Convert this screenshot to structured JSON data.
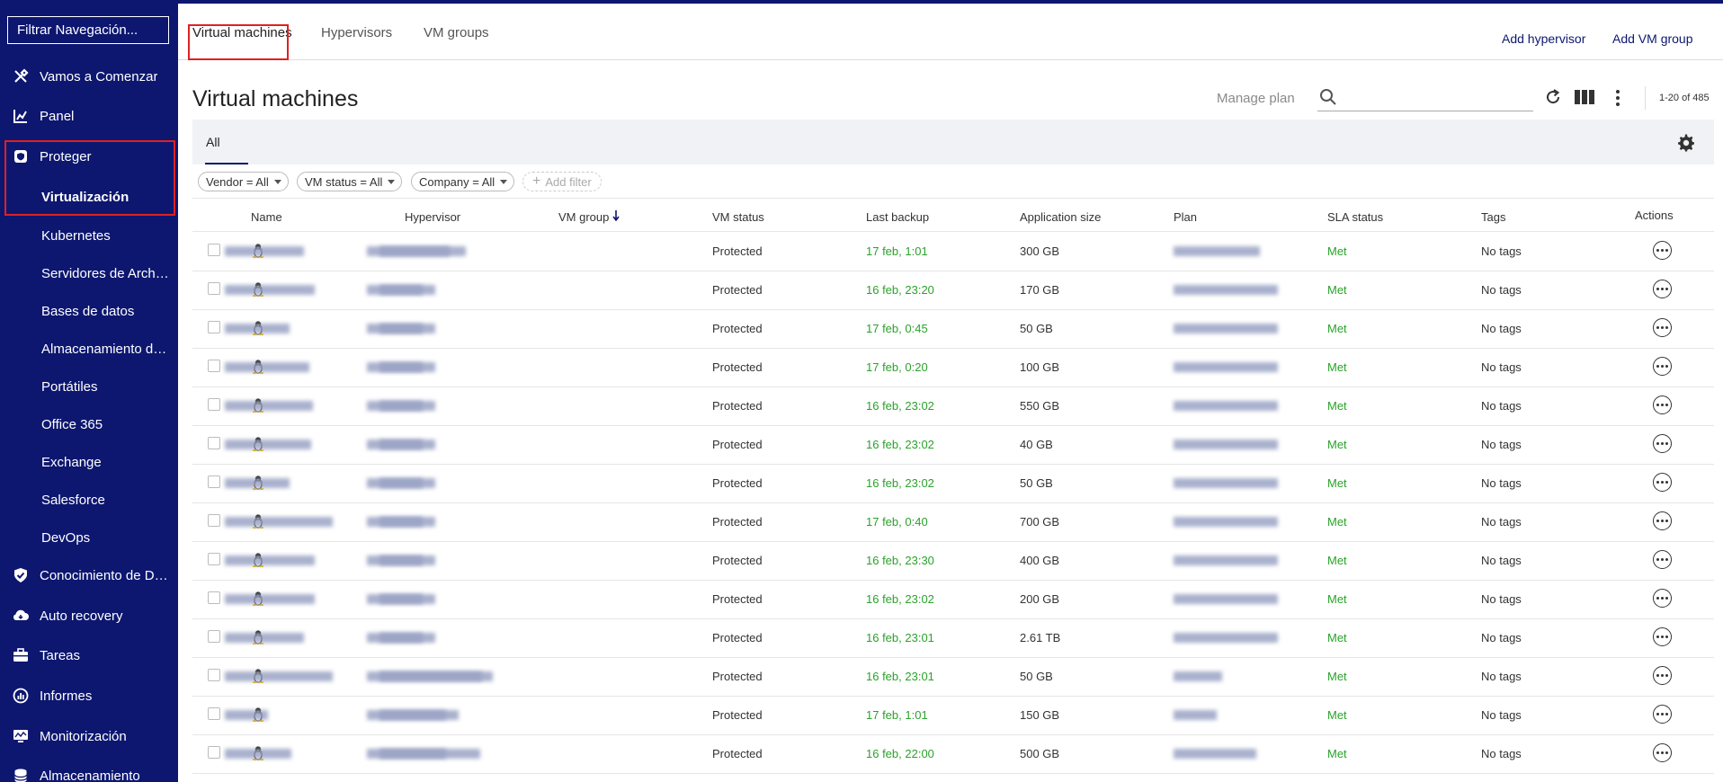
{
  "sidebar": {
    "filter_placeholder": "Filtrar Navegación...",
    "items": [
      {
        "label": "Vamos a Comenzar",
        "icon": "tools-icon"
      },
      {
        "label": "Panel",
        "icon": "chart-icon"
      },
      {
        "label": "Proteger",
        "icon": "shield-badge-icon"
      },
      {
        "label": "Virtualización"
      },
      {
        "label": "Kubernetes"
      },
      {
        "label": "Servidores de Archivos"
      },
      {
        "label": "Bases de datos"
      },
      {
        "label": "Almacenamiento de objetos"
      },
      {
        "label": "Portátiles"
      },
      {
        "label": "Office 365"
      },
      {
        "label": "Exchange"
      },
      {
        "label": "Salesforce"
      },
      {
        "label": "DevOps"
      },
      {
        "label": "Conocimiento de Datos",
        "icon": "shield-check-icon"
      },
      {
        "label": "Auto recovery",
        "icon": "cloud-recovery-icon"
      },
      {
        "label": "Tareas",
        "icon": "briefcase-icon"
      },
      {
        "label": "Informes",
        "icon": "report-icon"
      },
      {
        "label": "Monitorización",
        "icon": "monitor-icon"
      },
      {
        "label": "Almacenamiento",
        "icon": "database-icon"
      }
    ]
  },
  "tabs": [
    "Virtual machines",
    "Hypervisors",
    "VM groups"
  ],
  "top_actions": {
    "add_hypervisor": "Add hypervisor",
    "add_vm_group": "Add VM group"
  },
  "page": {
    "title": "Virtual machines",
    "manage_plan": "Manage plan",
    "search_placeholder": "",
    "count": "1-20 of 485"
  },
  "subtab": "All",
  "filters": [
    "Vendor = All",
    "VM status = All",
    "Company = All"
  ],
  "add_filter": "Add filter",
  "columns": [
    "Name",
    "Hypervisor",
    "VM group",
    "VM status",
    "Last backup",
    "Application size",
    "Plan",
    "SLA status",
    "Tags",
    "Actions"
  ],
  "rows": [
    {
      "status": "Protected",
      "backup": "17 feb, 1:01",
      "size": "300 GB",
      "sla": "Met",
      "tags": "No tags"
    },
    {
      "status": "Protected",
      "backup": "16 feb, 23:20",
      "size": "170 GB",
      "sla": "Met",
      "tags": "No tags"
    },
    {
      "status": "Protected",
      "backup": "17 feb, 0:45",
      "size": "50 GB",
      "sla": "Met",
      "tags": "No tags"
    },
    {
      "status": "Protected",
      "backup": "17 feb, 0:20",
      "size": "100 GB",
      "sla": "Met",
      "tags": "No tags"
    },
    {
      "status": "Protected",
      "backup": "16 feb, 23:02",
      "size": "550 GB",
      "sla": "Met",
      "tags": "No tags"
    },
    {
      "status": "Protected",
      "backup": "16 feb, 23:02",
      "size": "40 GB",
      "sla": "Met",
      "tags": "No tags"
    },
    {
      "status": "Protected",
      "backup": "16 feb, 23:02",
      "size": "50 GB",
      "sla": "Met",
      "tags": "No tags"
    },
    {
      "status": "Protected",
      "backup": "17 feb, 0:40",
      "size": "700 GB",
      "sla": "Met",
      "tags": "No tags"
    },
    {
      "status": "Protected",
      "backup": "16 feb, 23:30",
      "size": "400 GB",
      "sla": "Met",
      "tags": "No tags"
    },
    {
      "status": "Protected",
      "backup": "16 feb, 23:02",
      "size": "200 GB",
      "sla": "Met",
      "tags": "No tags"
    },
    {
      "status": "Protected",
      "backup": "16 feb, 23:01",
      "size": "2.61 TB",
      "sla": "Met",
      "tags": "No tags"
    },
    {
      "status": "Protected",
      "backup": "16 feb, 23:01",
      "size": "50 GB",
      "sla": "Met",
      "tags": "No tags"
    },
    {
      "status": "Protected",
      "backup": "17 feb, 1:01",
      "size": "150 GB",
      "sla": "Met",
      "tags": "No tags"
    },
    {
      "status": "Protected",
      "backup": "16 feb, 22:00",
      "size": "500 GB",
      "sla": "Met",
      "tags": "No tags"
    }
  ]
}
